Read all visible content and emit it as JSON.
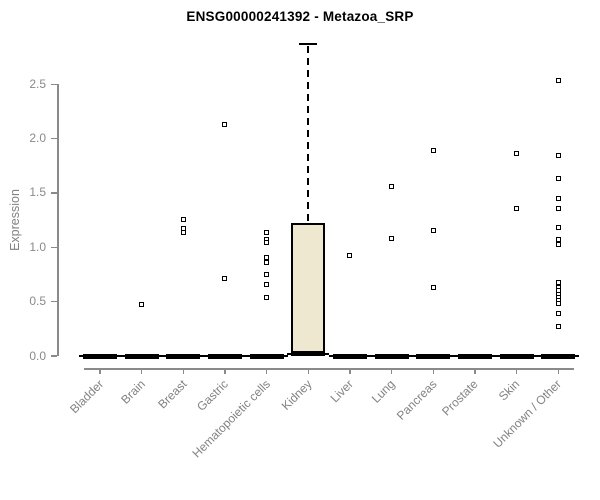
{
  "chart_data": {
    "type": "boxplot",
    "title": "ENSG00000241392 - Metazoa_SRP",
    "ylabel": "Expression",
    "xlabel": "",
    "ylim": [
      0,
      2.9
    ],
    "yticks": [
      0,
      0.5,
      1,
      1.5,
      2,
      2.5
    ],
    "grid": false,
    "legend": null,
    "point_style": "open-square",
    "box_fill_color": "#ede8cf",
    "line_color": "#000000",
    "axis_color": "#8a8a8a",
    "label_color": "#828282",
    "categories": [
      "Bladder",
      "Brain",
      "Breast",
      "Gastric",
      "Hematopoietic cells",
      "Kidney",
      "Liver",
      "Lung",
      "Pancreas",
      "Prostate",
      "Skin",
      "Unknown / Other"
    ],
    "groups": [
      {
        "label": "Bladder",
        "box": {
          "q1": 0,
          "median": 0,
          "q3": 0,
          "whisker_high": 0
        },
        "points": []
      },
      {
        "label": "Brain",
        "box": {
          "q1": 0,
          "median": 0,
          "q3": 0,
          "whisker_high": 0
        },
        "points": [
          0.47
        ]
      },
      {
        "label": "Breast",
        "box": {
          "q1": 0,
          "median": 0,
          "q3": 0,
          "whisker_high": 0
        },
        "points": [
          1.26,
          1.17,
          1.14
        ]
      },
      {
        "label": "Gastric",
        "box": {
          "q1": 0,
          "median": 0,
          "q3": 0,
          "whisker_high": 0
        },
        "points": [
          2.13,
          0.71
        ]
      },
      {
        "label": "Hematopoietic cells",
        "box": {
          "q1": 0,
          "median": 0,
          "q3": 0,
          "whisker_high": 0
        },
        "points": [
          1.14,
          1.07,
          1.04,
          0.91,
          0.86,
          0.75,
          0.66,
          0.54
        ]
      },
      {
        "label": "Kidney",
        "box": {
          "q1": 0.02,
          "median": 0.02,
          "q3": 1.22,
          "whisker_high": 2.87
        },
        "points": []
      },
      {
        "label": "Liver",
        "box": {
          "q1": 0,
          "median": 0,
          "q3": 0,
          "whisker_high": 0
        },
        "points": [
          0.92
        ]
      },
      {
        "label": "Lung",
        "box": {
          "q1": 0,
          "median": 0,
          "q3": 0,
          "whisker_high": 0
        },
        "points": [
          1.56,
          1.08
        ]
      },
      {
        "label": "Pancreas",
        "box": {
          "q1": 0,
          "median": 0,
          "q3": 0,
          "whisker_high": 0
        },
        "points": [
          1.89,
          1.15,
          0.63
        ]
      },
      {
        "label": "Prostate",
        "box": {
          "q1": 0,
          "median": 0,
          "q3": 0,
          "whisker_high": 0
        },
        "points": []
      },
      {
        "label": "Skin",
        "box": {
          "q1": 0,
          "median": 0,
          "q3": 0,
          "whisker_high": 0
        },
        "points": [
          1.86,
          1.36
        ]
      },
      {
        "label": "Unknown / Other",
        "box": {
          "q1": 0,
          "median": 0,
          "q3": 0,
          "whisker_high": 0
        },
        "points": [
          2.53,
          1.84,
          1.63,
          1.45,
          1.36,
          1.18,
          1.07,
          1.03,
          0.68,
          0.63,
          0.6,
          0.57,
          0.54,
          0.51,
          0.48,
          0.39,
          0.27
        ]
      }
    ]
  }
}
